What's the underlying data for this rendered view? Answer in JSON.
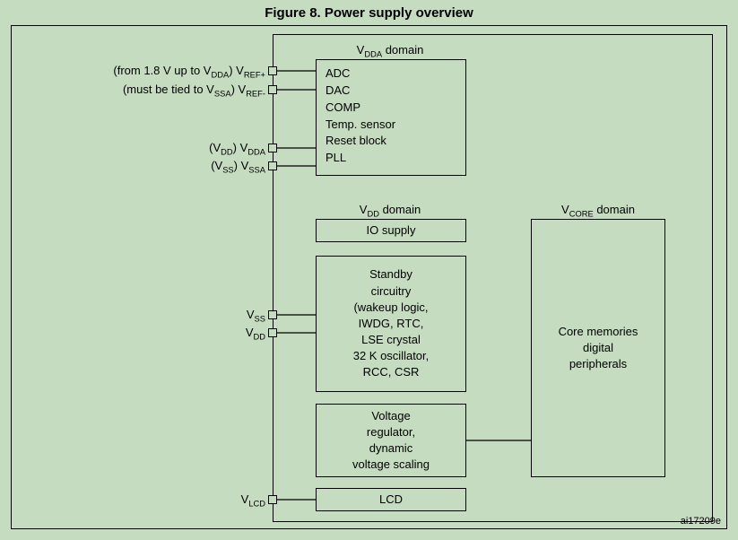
{
  "title": "Figure 8. Power supply overview",
  "ref_id": "ai17209e",
  "colors": {
    "bg": "#c5dcc0",
    "stroke": "#000000",
    "text": "#000000"
  },
  "domains": {
    "vdda": {
      "label_html": "V<sub>DDA</sub> domain"
    },
    "vdd": {
      "label_html": "V<sub>DD</sub> domain"
    },
    "vcore": {
      "label_html": "V<sub>CORE</sub> domain"
    }
  },
  "boxes": {
    "vdda_box_lines": [
      "ADC",
      "DAC",
      "COMP",
      "Temp. sensor",
      "Reset block",
      "PLL"
    ],
    "io_supply": "IO supply",
    "standby": "Standby\ncircuitry\n(wakeup logic,\nIWDG, RTC,\nLSE crystal\n32 K oscillator,\nRCC, CSR",
    "vreg": "Voltage\nregulator,\ndynamic\nvoltage scaling",
    "lcd": "LCD",
    "vcore": "Core memories\ndigital\nperipherals"
  },
  "pins": {
    "vrefp_prefix": "(from 1.8 V up to V",
    "vrefp_prefix_sub": "DDA",
    "vrefp_prefix_tail": ") V",
    "vrefp_sub": "REF+",
    "vrefm_prefix": "(must be tied to V",
    "vrefm_prefix_sub": "SSA",
    "vrefm_prefix_tail": ") V",
    "vrefm_sub": "REF-",
    "vdda_prefix": "(V",
    "vdda_prefix_sub": "DD",
    "vdda_prefix_tail": ") V",
    "vdda_sub": "DDA",
    "vssa_prefix": "(V",
    "vssa_prefix_sub": "SS",
    "vssa_prefix_tail": ") V",
    "vssa_sub": "SSA",
    "vss": "V",
    "vss_sub": "SS",
    "vdd": "V",
    "vdd_sub": "DD",
    "vlcd": "V",
    "vlcd_sub": "LCD"
  }
}
